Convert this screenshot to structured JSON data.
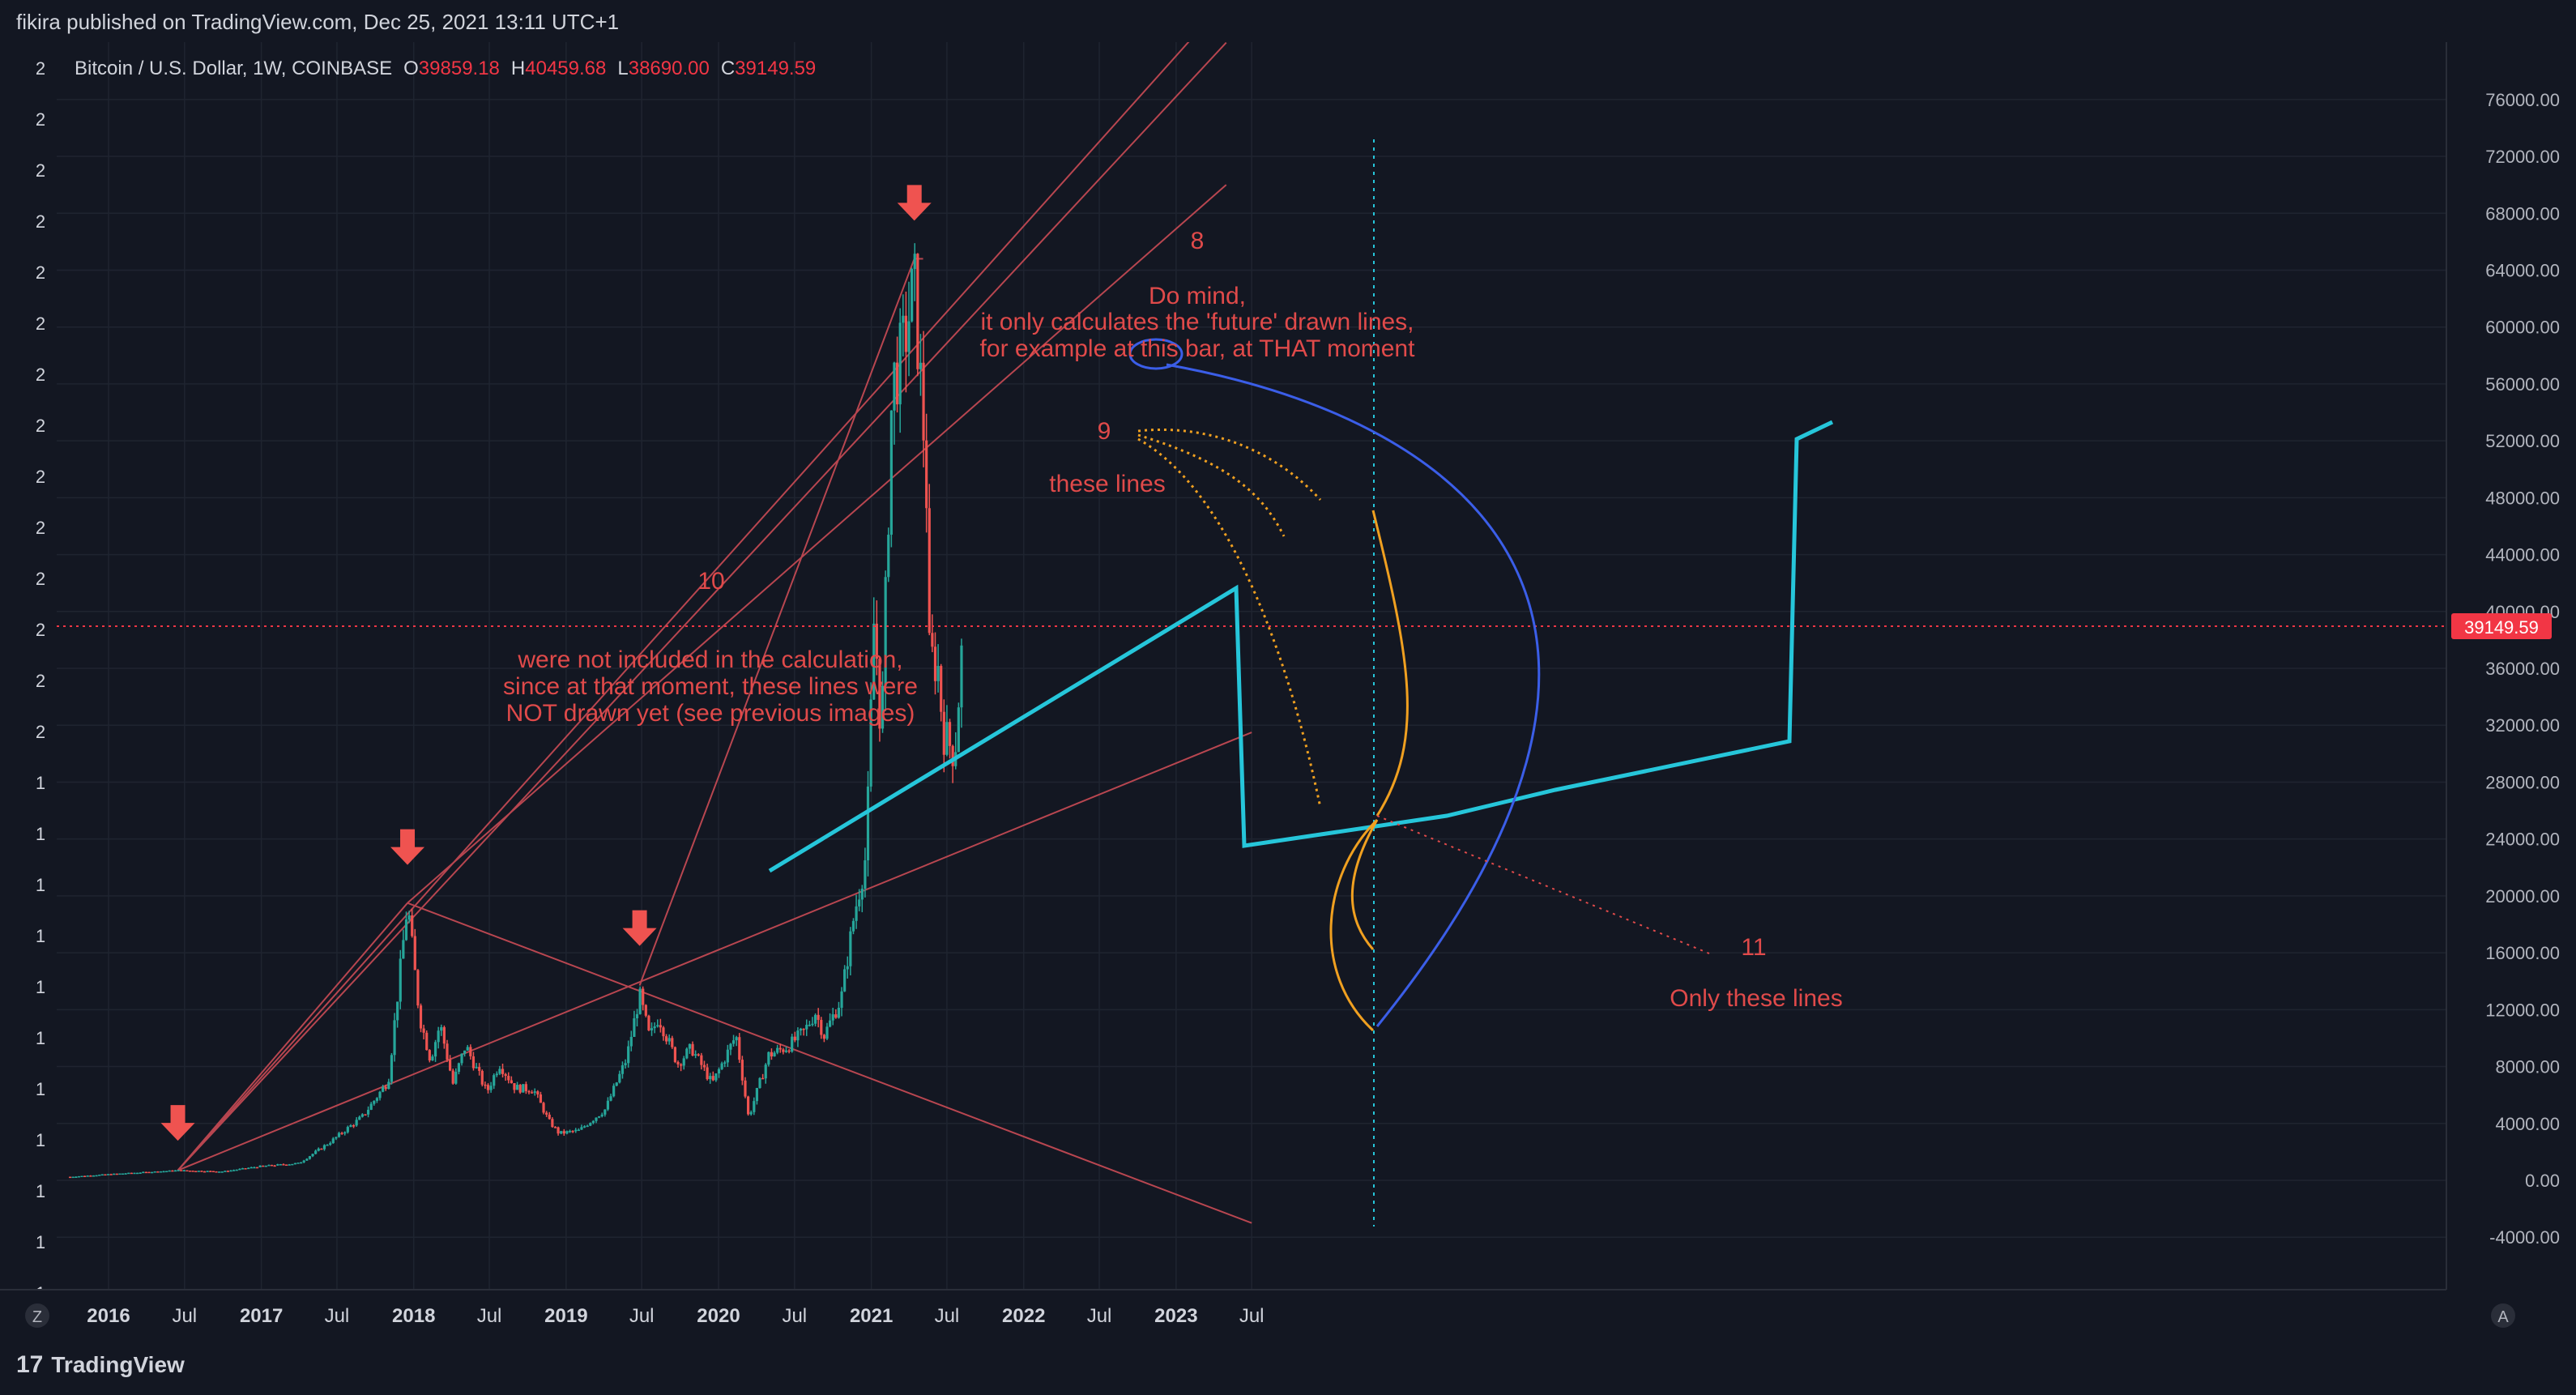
{
  "header": {
    "publisher_line": "fikira published on TradingView.com, Dec 25, 2021 13:11 UTC+1"
  },
  "footer": {
    "brand": "TradingView",
    "brand_mark": "17"
  },
  "colors": {
    "background": "#131722",
    "grid": "#1f2430",
    "text": "#d1d4dc",
    "up": "#26a69a",
    "down": "#ef5350",
    "annotation": "#e04a4a",
    "trendline": "#b84650",
    "cyan": "#26c6da",
    "blue": "#3b5ee8",
    "orange": "#f0a020",
    "price_tag": "#f23645"
  },
  "legend": {
    "symbol": "Bitcoin / U.S. Dollar, 1W, COINBASE",
    "o_label": "O",
    "o_value": "39859.18",
    "h_label": "H",
    "h_value": "40459.68",
    "l_label": "L",
    "l_value": "38690.00",
    "c_label": "C",
    "c_value": "39149.59"
  },
  "left_scale_labels": [
    "2",
    "2",
    "2",
    "2",
    "2",
    "2",
    "2",
    "2",
    "2",
    "2",
    "2",
    "2",
    "2",
    "2",
    "1",
    "1",
    "1",
    "1",
    "1",
    "1",
    "1",
    "1",
    "1",
    "1",
    "1"
  ],
  "bottom_left_button": "Z",
  "bottom_right_button": "A",
  "price_tag": "39149.59",
  "annotations": {
    "n8": "8",
    "do_mind_1": "Do mind,",
    "do_mind_2": "it only calculates the 'future' drawn lines,",
    "do_mind_3": "for example at this bar, at THAT moment",
    "n9": "9",
    "these_lines": "these lines",
    "n10": "10",
    "excluded_1": "were not included in the calculation,",
    "excluded_2": "since at that moment, these lines were",
    "excluded_3": "NOT drawn yet (see previous images)",
    "n11": "11",
    "only_these": "Only these lines"
  },
  "chart_data": {
    "type": "candlestick",
    "symbol": "Bitcoin / U.S. Dollar, 1W, COINBASE",
    "y_axis": {
      "ticks": [
        -4000,
        0,
        4000,
        8000,
        12000,
        16000,
        20000,
        24000,
        28000,
        32000,
        36000,
        40000,
        44000,
        48000,
        52000,
        56000,
        60000,
        64000,
        68000,
        72000,
        76000
      ]
    },
    "x_axis": {
      "labels": [
        {
          "label": "2016",
          "date": "2016-01-01",
          "major": true
        },
        {
          "label": "Jul",
          "date": "2016-07-01",
          "major": false
        },
        {
          "label": "2017",
          "date": "2017-01-01",
          "major": true
        },
        {
          "label": "Jul",
          "date": "2017-07-01",
          "major": false
        },
        {
          "label": "2018",
          "date": "2018-01-01",
          "major": true
        },
        {
          "label": "Jul",
          "date": "2018-07-01",
          "major": false
        },
        {
          "label": "2019",
          "date": "2019-01-01",
          "major": true
        },
        {
          "label": "Jul",
          "date": "2019-07-01",
          "major": false
        },
        {
          "label": "2020",
          "date": "2020-01-01",
          "major": true
        },
        {
          "label": "Jul",
          "date": "2020-07-01",
          "major": false
        },
        {
          "label": "2021",
          "date": "2021-01-01",
          "major": true
        },
        {
          "label": "Jul",
          "date": "2021-07-01",
          "major": false
        },
        {
          "label": "2022",
          "date": "2022-01-01",
          "major": true
        },
        {
          "label": "Jul",
          "date": "2022-07-01",
          "major": false
        },
        {
          "label": "2023",
          "date": "2023-01-01",
          "major": true
        },
        {
          "label": "Jul",
          "date": "2023-07-01",
          "major": false
        }
      ]
    },
    "price_path": [
      [
        "2015-10-01",
        250
      ],
      [
        "2016-01-01",
        430
      ],
      [
        "2016-06-15",
        700
      ],
      [
        "2016-10-01",
        620
      ],
      [
        "2017-01-01",
        1000
      ],
      [
        "2017-04-01",
        1200
      ],
      [
        "2017-06-15",
        2700
      ],
      [
        "2017-09-01",
        4500
      ],
      [
        "2017-11-01",
        7000
      ],
      [
        "2017-12-17",
        19500
      ],
      [
        "2018-01-15",
        11500
      ],
      [
        "2018-02-10",
        8500
      ],
      [
        "2018-03-05",
        11000
      ],
      [
        "2018-04-05",
        6800
      ],
      [
        "2018-05-05",
        9500
      ],
      [
        "2018-06-25",
        6200
      ],
      [
        "2018-07-25",
        8200
      ],
      [
        "2018-09-01",
        6500
      ],
      [
        "2018-10-15",
        6400
      ],
      [
        "2018-11-20",
        4200
      ],
      [
        "2018-12-15",
        3300
      ],
      [
        "2019-02-01",
        3500
      ],
      [
        "2019-04-05",
        5000
      ],
      [
        "2019-05-25",
        8500
      ],
      [
        "2019-06-26",
        13000
      ],
      [
        "2019-07-20",
        10000
      ],
      [
        "2019-08-10",
        11500
      ],
      [
        "2019-09-25",
        8200
      ],
      [
        "2019-10-28",
        9300
      ],
      [
        "2019-12-17",
        6800
      ],
      [
        "2020-02-12",
        10200
      ],
      [
        "2020-03-13",
        4400
      ],
      [
        "2020-04-30",
        8800
      ],
      [
        "2020-06-15",
        9400
      ],
      [
        "2020-07-25",
        10500
      ],
      [
        "2020-08-20",
        11800
      ],
      [
        "2020-09-10",
        10200
      ],
      [
        "2020-10-21",
        12800
      ],
      [
        "2020-11-20",
        18500
      ],
      [
        "2020-12-20",
        23000
      ],
      [
        "2021-01-08",
        40000
      ],
      [
        "2021-01-25",
        31000
      ],
      [
        "2021-02-20",
        56000
      ],
      [
        "2021-03-15",
        58000
      ],
      [
        "2021-04-14",
        63000
      ],
      [
        "2021-05-12",
        50000
      ],
      [
        "2021-05-20",
        37000
      ],
      [
        "2021-06-10",
        36000
      ],
      [
        "2021-06-22",
        31500
      ],
      [
        "2021-07-20",
        30000
      ],
      [
        "2021-08-10",
        39149.59
      ]
    ],
    "ohlc_last": {
      "open": 39859.18,
      "high": 40459.68,
      "low": 38690.0,
      "close": 39149.59
    },
    "last_price": 39149.59
  }
}
